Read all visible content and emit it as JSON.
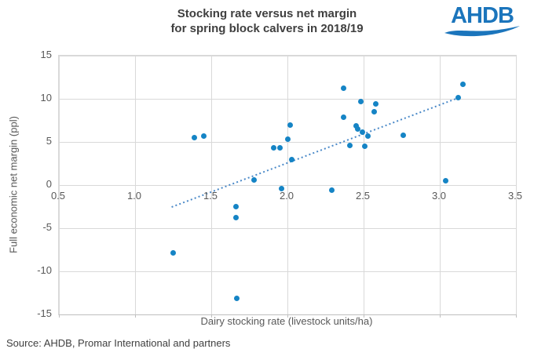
{
  "header": {
    "title_line1": "Stocking rate versus net margin",
    "title_line2": "for spring block calvers in 2018/19",
    "logo_text": "AHDB"
  },
  "chart_data": {
    "type": "scatter",
    "title": "Stocking rate versus net margin for spring block calvers in 2018/19",
    "xlabel": "Dairy stocking rate (livestock units/ha)",
    "ylabel": "Full economic net margin (ppl)",
    "xlim": [
      0.5,
      3.5
    ],
    "ylim": [
      -15,
      15
    ],
    "x_ticks": [
      "0.5",
      "1.0",
      "1.5",
      "2.0",
      "2.5",
      "3.0",
      "3.5"
    ],
    "y_ticks": [
      "15",
      "10",
      "5",
      "0",
      "-5",
      "-10",
      "-15"
    ],
    "grid": true,
    "x_tick_values": [
      0.5,
      1.0,
      1.5,
      2.0,
      2.5,
      3.0,
      3.5
    ],
    "y_tick_values": [
      15,
      10,
      5,
      0,
      -5,
      -10,
      -15
    ],
    "points": [
      [
        1.25,
        -7.9
      ],
      [
        1.39,
        5.5
      ],
      [
        1.45,
        5.7
      ],
      [
        1.66,
        -2.5
      ],
      [
        1.66,
        -3.8
      ],
      [
        1.67,
        -13.1
      ],
      [
        1.78,
        0.6
      ],
      [
        1.91,
        4.3
      ],
      [
        1.95,
        4.3
      ],
      [
        1.96,
        -0.4
      ],
      [
        2.0,
        5.3
      ],
      [
        2.02,
        7.0
      ],
      [
        2.03,
        3.0
      ],
      [
        2.29,
        -0.6
      ],
      [
        2.37,
        11.2
      ],
      [
        2.37,
        7.9
      ],
      [
        2.41,
        4.6
      ],
      [
        2.45,
        6.9
      ],
      [
        2.46,
        6.5
      ],
      [
        2.49,
        6.1
      ],
      [
        2.48,
        9.7
      ],
      [
        2.51,
        4.5
      ],
      [
        2.53,
        5.7
      ],
      [
        2.57,
        8.5
      ],
      [
        2.58,
        9.4
      ],
      [
        2.76,
        5.8
      ],
      [
        3.04,
        0.5
      ],
      [
        3.12,
        10.1
      ],
      [
        3.15,
        11.7
      ]
    ],
    "trendline": {
      "style": "dotted",
      "x1": 1.24,
      "y1": -2.55,
      "x2": 3.12,
      "y2": 10.1
    },
    "colors": {
      "point": "#1584c5",
      "trend": "#4a89c8",
      "grid": "#d9d9d9",
      "axis": "#bfbfbf",
      "tick_label": "#595959",
      "title": "#3f3f3f",
      "logo": "#1b75bc"
    },
    "legend": null
  },
  "footer": {
    "source": "Source: AHDB, Promar International  and partners"
  }
}
